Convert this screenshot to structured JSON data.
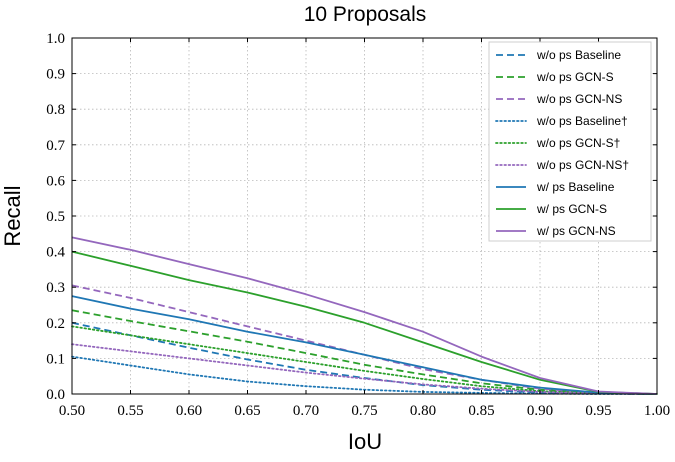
{
  "chart_data": {
    "type": "line",
    "title": "10 Proposals",
    "xlabel": "IoU",
    "ylabel": "Recall",
    "xlim": [
      0.5,
      1.0
    ],
    "ylim": [
      0.0,
      1.0
    ],
    "xticks": [
      "0.50",
      "0.55",
      "0.60",
      "0.65",
      "0.70",
      "0.75",
      "0.80",
      "0.85",
      "0.90",
      "0.95",
      "1.00"
    ],
    "yticks": [
      "0.0",
      "0.1",
      "0.2",
      "0.3",
      "0.4",
      "0.5",
      "0.6",
      "0.7",
      "0.8",
      "0.9",
      "1.0"
    ],
    "grid": true,
    "legend_position": "top-right",
    "x": [
      0.5,
      0.55,
      0.6,
      0.65,
      0.7,
      0.75,
      0.8,
      0.85,
      0.9,
      0.95,
      1.0
    ],
    "series": [
      {
        "name": "w/o ps Baseline",
        "color": "#1f77b4",
        "style": "dashed",
        "values": [
          0.2,
          0.165,
          0.13,
          0.097,
          0.068,
          0.045,
          0.025,
          0.012,
          0.004,
          0.001,
          0.0
        ]
      },
      {
        "name": "w/o ps GCN-S",
        "color": "#2ca02c",
        "style": "dashed",
        "values": [
          0.235,
          0.205,
          0.176,
          0.147,
          0.115,
          0.082,
          0.055,
          0.03,
          0.012,
          0.002,
          0.0
        ]
      },
      {
        "name": "w/o ps GCN-NS",
        "color": "#9467bd",
        "style": "dashed",
        "values": [
          0.305,
          0.27,
          0.23,
          0.19,
          0.15,
          0.11,
          0.07,
          0.04,
          0.015,
          0.003,
          0.0
        ]
      },
      {
        "name": "w/o ps Baseline†",
        "color": "#1f77b4",
        "style": "dotted",
        "values": [
          0.105,
          0.08,
          0.055,
          0.035,
          0.022,
          0.012,
          0.006,
          0.003,
          0.001,
          0.0,
          0.0
        ]
      },
      {
        "name": "w/o ps GCN-S†",
        "color": "#2ca02c",
        "style": "dotted",
        "values": [
          0.19,
          0.165,
          0.14,
          0.115,
          0.09,
          0.065,
          0.042,
          0.022,
          0.008,
          0.002,
          0.0
        ]
      },
      {
        "name": "w/o ps GCN-NS†",
        "color": "#9467bd",
        "style": "dotted",
        "values": [
          0.14,
          0.12,
          0.1,
          0.08,
          0.06,
          0.043,
          0.027,
          0.015,
          0.006,
          0.001,
          0.0
        ]
      },
      {
        "name": "w/ ps Baseline",
        "color": "#1f77b4",
        "style": "solid",
        "values": [
          0.275,
          0.24,
          0.21,
          0.175,
          0.145,
          0.11,
          0.075,
          0.04,
          0.018,
          0.004,
          0.0
        ]
      },
      {
        "name": "w/ ps GCN-S",
        "color": "#2ca02c",
        "style": "solid",
        "values": [
          0.4,
          0.36,
          0.32,
          0.285,
          0.245,
          0.2,
          0.145,
          0.09,
          0.04,
          0.006,
          0.0
        ]
      },
      {
        "name": "w/ ps GCN-NS",
        "color": "#9467bd",
        "style": "solid",
        "values": [
          0.44,
          0.405,
          0.365,
          0.325,
          0.28,
          0.23,
          0.175,
          0.105,
          0.045,
          0.007,
          0.0
        ]
      }
    ]
  }
}
